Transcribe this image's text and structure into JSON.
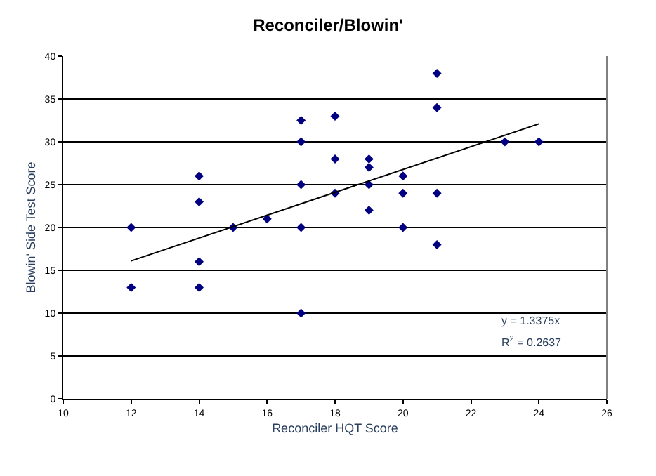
{
  "chart_data": {
    "type": "scatter",
    "title": "Reconciler/Blowin'",
    "xlabel": "Reconciler HQT Score",
    "ylabel": "Blowin' Side Test Score",
    "xlim": [
      10,
      26
    ],
    "xticks": [
      10,
      12,
      14,
      16,
      18,
      20,
      22,
      24,
      26
    ],
    "ylim": [
      0,
      40
    ],
    "yticks": [
      0,
      5,
      10,
      15,
      20,
      25,
      30,
      35,
      40
    ],
    "grid": "y",
    "annotations": [
      "y = 1.3375x",
      "R$^{2}$ = 0.2637"
    ],
    "series": [
      {
        "marker": "diamond",
        "color": "#000080",
        "x": [
          12,
          12,
          14,
          14,
          14,
          14,
          15,
          16,
          17,
          17,
          17,
          17,
          17,
          18,
          18,
          18,
          19,
          19,
          19,
          19,
          20,
          20,
          20,
          21,
          21,
          21,
          21,
          23,
          24
        ],
        "values": [
          20,
          13,
          26,
          23,
          16,
          13,
          20,
          21,
          32.5,
          30,
          25,
          20,
          10,
          33,
          28,
          24,
          28,
          27,
          25,
          22,
          26,
          24,
          20,
          38,
          34,
          24,
          18,
          30,
          30
        ]
      },
      {
        "type": "line",
        "marker": "none",
        "color": "#000000",
        "x": [
          12,
          24
        ],
        "values": [
          16.1,
          32.1
        ]
      }
    ]
  }
}
